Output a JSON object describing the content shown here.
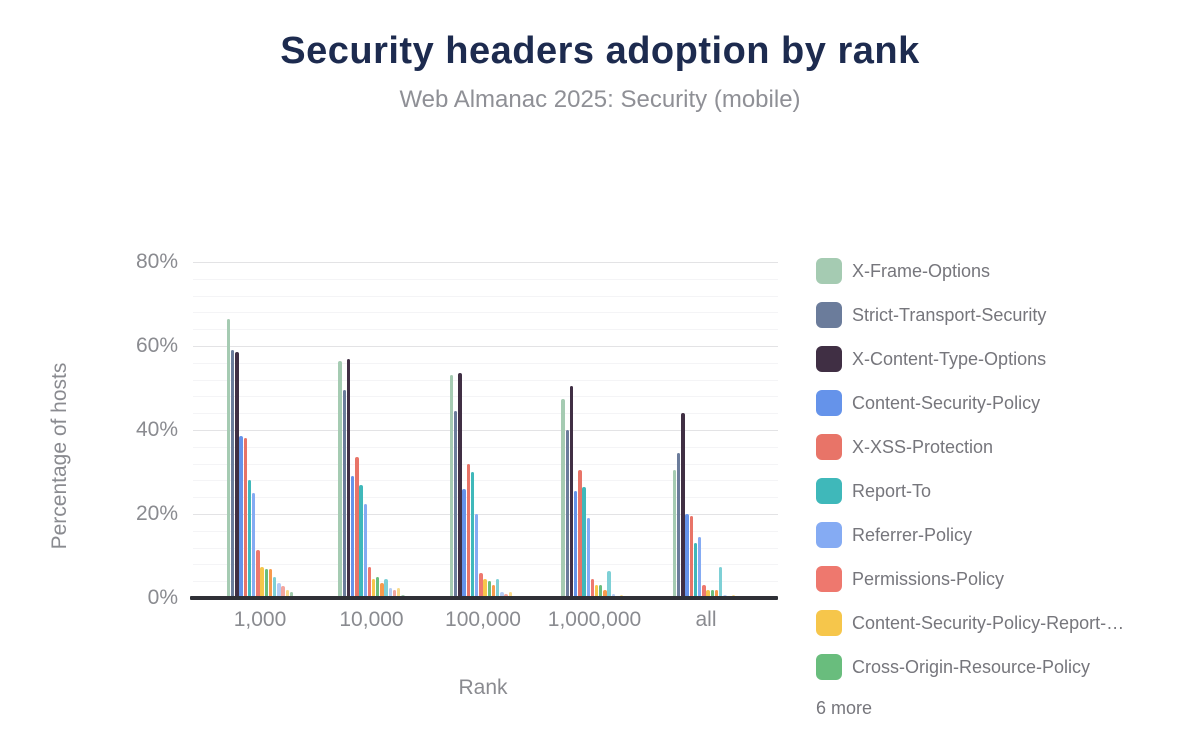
{
  "title": "Security headers adoption by rank",
  "subtitle": "Web Almanac 2025: Security (mobile)",
  "chart_data": {
    "type": "bar",
    "title": "Security headers adoption by rank",
    "subtitle": "Web Almanac 2025: Security (mobile)",
    "xlabel": "Rank",
    "ylabel": "Percentage of hosts",
    "categories": [
      "1,000",
      "10,000",
      "100,000",
      "1,000,000",
      "all"
    ],
    "ylim": [
      0,
      80
    ],
    "yticks": [
      "0%",
      "20%",
      "40%",
      "60%",
      "80%"
    ],
    "ytick_step_major": 20,
    "ytick_step_minor": 4,
    "grid": true,
    "legend_position": "right",
    "legend_more": "6 more",
    "series": [
      {
        "name": "X-Frame-Options",
        "color": "#a5cbb2",
        "in_legend": true,
        "values": [
          66.5,
          56.5,
          53,
          47.5,
          30.5
        ]
      },
      {
        "name": "Strict-Transport-Security",
        "color": "#6b7c9b",
        "in_legend": true,
        "values": [
          59,
          49.5,
          44.5,
          40,
          34.5
        ]
      },
      {
        "name": "X-Content-Type-Options",
        "color": "#402f44",
        "in_legend": true,
        "values": [
          58.5,
          57,
          53.5,
          50.5,
          44
        ]
      },
      {
        "name": "Content-Security-Policy",
        "color": "#6593ea",
        "in_legend": true,
        "values": [
          38.5,
          29,
          26,
          25.5,
          20
        ]
      },
      {
        "name": "X-XSS-Protection",
        "color": "#e87468",
        "in_legend": true,
        "values": [
          38,
          33.5,
          32,
          30.5,
          19.5
        ]
      },
      {
        "name": "Report-To",
        "color": "#3fb8ba",
        "in_legend": true,
        "values": [
          28,
          27,
          30,
          26.5,
          13
        ]
      },
      {
        "name": "Referrer-Policy",
        "color": "#85abf3",
        "in_legend": true,
        "values": [
          25,
          22.5,
          20,
          19,
          14.5
        ]
      },
      {
        "name": "Permissions-Policy",
        "color": "#ee786e",
        "in_legend": true,
        "values": [
          11.5,
          7.5,
          6,
          4.5,
          3
        ]
      },
      {
        "name": "Content-Security-Policy-Report-…",
        "color": "#f6c64b",
        "in_legend": true,
        "values": [
          7.5,
          4.5,
          4.5,
          3,
          2
        ]
      },
      {
        "name": "Cross-Origin-Resource-Policy",
        "color": "#69bd7d",
        "in_legend": true,
        "values": [
          7,
          5,
          4,
          3,
          2
        ]
      },
      {
        "name": "more-1",
        "color": "#f89a4c",
        "in_legend": false,
        "values": [
          7,
          3.5,
          3,
          2,
          2
        ]
      },
      {
        "name": "more-2",
        "color": "#7ed0d6",
        "in_legend": false,
        "values": [
          5,
          4.5,
          4.5,
          6.5,
          7.5
        ]
      },
      {
        "name": "more-3",
        "color": "#b5ccf5",
        "in_legend": false,
        "values": [
          3.5,
          2.5,
          1.5,
          1,
          0.8
        ]
      },
      {
        "name": "more-4",
        "color": "#f3a69f",
        "in_legend": false,
        "values": [
          2.8,
          2,
          1,
          0.5,
          0.4
        ]
      },
      {
        "name": "more-5",
        "color": "#fadb8c",
        "in_legend": false,
        "values": [
          2,
          2.5,
          1.5,
          0.8,
          0.8
        ]
      },
      {
        "name": "more-6",
        "color": "#a0c9ab",
        "in_legend": false,
        "values": [
          1.5,
          0.7,
          0.5,
          0.3,
          0.2
        ]
      }
    ]
  }
}
